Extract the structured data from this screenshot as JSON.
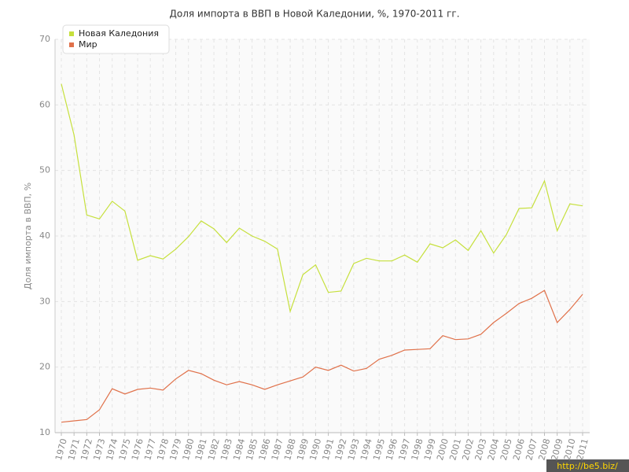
{
  "chart_data": {
    "type": "line",
    "title": "Доля импорта в ВВП в Новой Каледонии, %, 1970-2011 гг.",
    "y_label": "Доля импорта в ВВП, %",
    "watermark": "http://be5.biz/",
    "categories": [
      "1970",
      "1971",
      "1972",
      "1973",
      "1974",
      "1975",
      "1976",
      "1977",
      "1978",
      "1979",
      "1980",
      "1981",
      "1982",
      "1983",
      "1984",
      "1985",
      "1986",
      "1987",
      "1988",
      "1989",
      "1990",
      "1991",
      "1992",
      "1993",
      "1994",
      "1995",
      "1996",
      "1997",
      "1998",
      "1999",
      "2000",
      "2001",
      "2002",
      "2003",
      "2004",
      "2005",
      "2006",
      "2007",
      "2008",
      "2009",
      "2010",
      "2011"
    ],
    "series": [
      {
        "name": "Новая Каледония",
        "color": "#c6e03c",
        "values": [
          63.2,
          55.4,
          43.2,
          42.6,
          45.3,
          43.8,
          36.3,
          37.0,
          36.5,
          38.0,
          39.9,
          42.3,
          41.1,
          39.0,
          41.2,
          40.0,
          39.2,
          38.0,
          28.5,
          34.1,
          35.6,
          31.4,
          31.6,
          35.8,
          36.6,
          36.2,
          36.2,
          37.1,
          36.0,
          38.8,
          38.2,
          39.4,
          37.8,
          40.8,
          37.4,
          40.2,
          44.2,
          44.3,
          48.4,
          40.8,
          44.9,
          44.6
        ]
      },
      {
        "name": "Мир",
        "color": "#e0714a",
        "values": [
          11.6,
          11.8,
          12.0,
          13.5,
          16.7,
          15.9,
          16.6,
          16.8,
          16.5,
          18.2,
          19.5,
          19.0,
          18.0,
          17.3,
          17.8,
          17.3,
          16.6,
          17.3,
          17.9,
          18.5,
          20.0,
          19.5,
          20.3,
          19.4,
          19.8,
          21.2,
          21.8,
          22.6,
          22.7,
          22.8,
          24.8,
          24.2,
          24.3,
          25.0,
          26.8,
          28.2,
          29.7,
          30.5,
          31.7,
          26.8,
          28.8,
          31.1
        ]
      }
    ],
    "ylim": [
      10,
      70
    ],
    "yticks": [
      10,
      20,
      30,
      40,
      50,
      60,
      70
    ],
    "grid": true,
    "legend": "top-left"
  }
}
